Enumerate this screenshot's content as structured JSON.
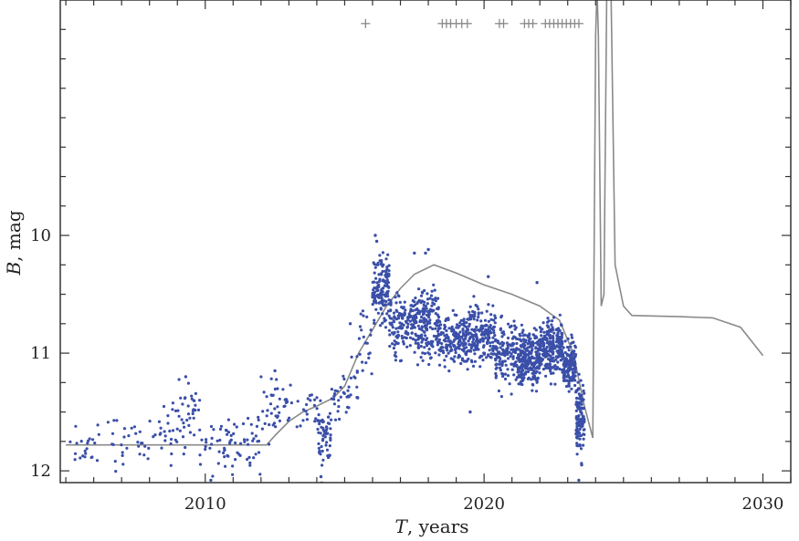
{
  "chart_data": {
    "type": "scatter",
    "xlabel": {
      "symbol": "T",
      "rest": ", years"
    },
    "ylabel": {
      "symbol": "B",
      "rest": ", mag"
    },
    "xlim": [
      2004.8,
      2031.0
    ],
    "ylim": [
      12.1,
      8.0
    ],
    "y_inverted": true,
    "x_ticks": [
      2010,
      2020,
      2030
    ],
    "y_ticks": [
      10,
      11,
      12
    ],
    "x_minor_step": 1,
    "y_minor_step": 0.25,
    "grid": false,
    "colors": {
      "points": "#3a4fa8",
      "model_curve": "#8a8a8a",
      "markers": "#8a8a8a",
      "axes": "#333333"
    },
    "observation_clusters": [
      {
        "x_range": [
          2005.0,
          2006.4
        ],
        "y_center": 11.78,
        "y_spread": 0.2,
        "count": 22
      },
      {
        "x_range": [
          2006.4,
          2007.6
        ],
        "y_center": 11.75,
        "y_spread": 0.22,
        "count": 20
      },
      {
        "x_range": [
          2007.6,
          2008.8
        ],
        "y_center": 11.7,
        "y_spread": 0.22,
        "count": 28
      },
      {
        "x_range": [
          2008.8,
          2009.8
        ],
        "y_center": 11.55,
        "y_spread": 0.28,
        "count": 42
      },
      {
        "x_range": [
          2009.8,
          2010.8
        ],
        "y_center": 11.75,
        "y_spread": 0.25,
        "count": 30
      },
      {
        "x_range": [
          2010.8,
          2012.0
        ],
        "y_center": 11.8,
        "y_spread": 0.22,
        "count": 42
      },
      {
        "x_range": [
          2012.0,
          2013.0
        ],
        "y_center": 11.45,
        "y_spread": 0.3,
        "count": 40
      },
      {
        "x_range": [
          2013.0,
          2014.0
        ],
        "y_center": 11.5,
        "y_spread": 0.2,
        "count": 20
      },
      {
        "x_range": [
          2014.0,
          2014.5
        ],
        "y_center": 11.7,
        "y_spread": 0.3,
        "count": 60
      },
      {
        "x_range": [
          2014.5,
          2015.5
        ],
        "y_center": 11.35,
        "y_spread": 0.25,
        "count": 40
      },
      {
        "x_range": [
          2015.5,
          2016.0
        ],
        "y_center": 10.9,
        "y_spread": 0.3,
        "count": 20
      },
      {
        "x_range": [
          2016.0,
          2016.6
        ],
        "y_center": 10.45,
        "y_spread": 0.28,
        "count": 140
      },
      {
        "x_range": [
          2016.6,
          2017.6
        ],
        "y_center": 10.75,
        "y_spread": 0.25,
        "count": 160
      },
      {
        "x_range": [
          2017.6,
          2018.4
        ],
        "y_center": 10.75,
        "y_spread": 0.28,
        "count": 160
      },
      {
        "x_range": [
          2018.4,
          2019.4
        ],
        "y_center": 10.9,
        "y_spread": 0.22,
        "count": 160
      },
      {
        "x_range": [
          2019.4,
          2020.4
        ],
        "y_center": 10.85,
        "y_spread": 0.25,
        "count": 180
      },
      {
        "x_range": [
          2020.4,
          2021.2
        ],
        "y_center": 11.0,
        "y_spread": 0.25,
        "count": 140
      },
      {
        "x_range": [
          2021.2,
          2022.0
        ],
        "y_center": 11.05,
        "y_spread": 0.22,
        "count": 260
      },
      {
        "x_range": [
          2022.0,
          2022.8
        ],
        "y_center": 10.95,
        "y_spread": 0.22,
        "count": 240
      },
      {
        "x_range": [
          2022.8,
          2023.3
        ],
        "y_center": 11.1,
        "y_spread": 0.2,
        "count": 160
      },
      {
        "x_range": [
          2023.3,
          2023.6
        ],
        "y_center": 11.55,
        "y_spread": 0.28,
        "count": 120
      }
    ],
    "observation_points": [
      {
        "x": 2016.1,
        "y": 10.0
      },
      {
        "x": 2016.15,
        "y": 10.05
      },
      {
        "x": 2017.9,
        "y": 10.15
      },
      {
        "x": 2018.0,
        "y": 10.12
      },
      {
        "x": 2020.15,
        "y": 10.35
      },
      {
        "x": 2021.9,
        "y": 10.4
      },
      {
        "x": 2017.5,
        "y": 10.15
      },
      {
        "x": 2023.4,
        "y": 12.08
      },
      {
        "x": 2023.5,
        "y": 11.95
      },
      {
        "x": 2010.2,
        "y": 12.08
      },
      {
        "x": 2014.15,
        "y": 12.05
      },
      {
        "x": 2009.3,
        "y": 11.2
      },
      {
        "x": 2012.5,
        "y": 11.15
      },
      {
        "x": 2015.2,
        "y": 10.75
      },
      {
        "x": 2019.5,
        "y": 11.5
      }
    ],
    "model_curve": [
      {
        "x": 2005.0,
        "y": 11.78
      },
      {
        "x": 2012.2,
        "y": 11.78
      },
      {
        "x": 2012.5,
        "y": 11.7
      },
      {
        "x": 2013.0,
        "y": 11.58
      },
      {
        "x": 2013.5,
        "y": 11.5
      },
      {
        "x": 2014.0,
        "y": 11.45
      },
      {
        "x": 2014.6,
        "y": 11.38
      },
      {
        "x": 2015.0,
        "y": 11.28
      },
      {
        "x": 2015.5,
        "y": 11.0
      },
      {
        "x": 2016.0,
        "y": 10.8
      },
      {
        "x": 2016.5,
        "y": 10.6
      },
      {
        "x": 2017.0,
        "y": 10.45
      },
      {
        "x": 2017.5,
        "y": 10.33
      },
      {
        "x": 2018.2,
        "y": 10.25
      },
      {
        "x": 2019.0,
        "y": 10.32
      },
      {
        "x": 2020.0,
        "y": 10.42
      },
      {
        "x": 2021.0,
        "y": 10.5
      },
      {
        "x": 2022.0,
        "y": 10.6
      },
      {
        "x": 2022.7,
        "y": 10.72
      },
      {
        "x": 2023.2,
        "y": 11.0
      },
      {
        "x": 2023.6,
        "y": 11.45
      },
      {
        "x": 2023.9,
        "y": 11.72
      },
      {
        "x": 2024.0,
        "y": 8.3
      },
      {
        "x": 2024.05,
        "y": 7.9
      },
      {
        "x": 2024.1,
        "y": 8.3
      },
      {
        "x": 2024.2,
        "y": 10.6
      },
      {
        "x": 2024.3,
        "y": 10.5
      },
      {
        "x": 2024.4,
        "y": 7.9
      },
      {
        "x": 2024.55,
        "y": 7.9
      },
      {
        "x": 2024.7,
        "y": 10.25
      },
      {
        "x": 2025.0,
        "y": 10.6
      },
      {
        "x": 2025.3,
        "y": 10.68
      },
      {
        "x": 2027.0,
        "y": 10.69
      },
      {
        "x": 2028.2,
        "y": 10.7
      },
      {
        "x": 2029.2,
        "y": 10.78
      },
      {
        "x": 2030.0,
        "y": 11.02
      }
    ],
    "event_markers": {
      "y": 8.2,
      "x": [
        2015.75,
        2018.5,
        2018.65,
        2018.8,
        2019.0,
        2019.2,
        2019.4,
        2020.55,
        2020.7,
        2021.45,
        2021.6,
        2021.75,
        2022.2,
        2022.35,
        2022.5,
        2022.65,
        2022.8,
        2022.95,
        2023.1,
        2023.25,
        2023.4
      ]
    }
  }
}
